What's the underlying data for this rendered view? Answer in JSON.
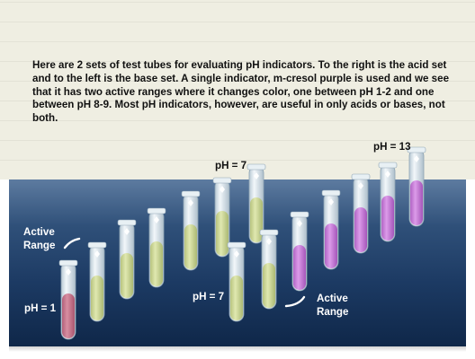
{
  "description": "Here are 2 sets of test tubes for evaluating pH indicators. To the right is the acid set and to the left is the base set. A single indicator, m-cresol purple is used and we see that it has two active ranges where it changes color, one between pH 1-2 and one between pH 8-9. Most pH indicators, however, are useful in only acids or bases, not both.",
  "labels": {
    "ph7_upper": "pH = 7",
    "ph13": "pH = 13",
    "active_range_left_line1": "Active",
    "active_range_left_line2": "Range",
    "ph7_lower": "pH = 7",
    "active_range_right_line1": "Active",
    "active_range_right_line2": "Range",
    "ph1": "pH = 1"
  },
  "colors": {
    "pink": "#c9788c",
    "yellow_green": "#cfd99a",
    "purple": "#c77fd8",
    "tube_glass": "#dfe9ef",
    "text_dark": "#111111",
    "text_light": "#ffffff"
  },
  "tube_sets": {
    "acid_set_colors": [
      "pink",
      "yellow_green",
      "yellow_green",
      "yellow_green",
      "yellow_green",
      "yellow_green",
      "yellow_green"
    ],
    "base_set_colors": [
      "yellow_green",
      "yellow_green",
      "purple",
      "purple",
      "purple",
      "purple",
      "purple"
    ]
  }
}
